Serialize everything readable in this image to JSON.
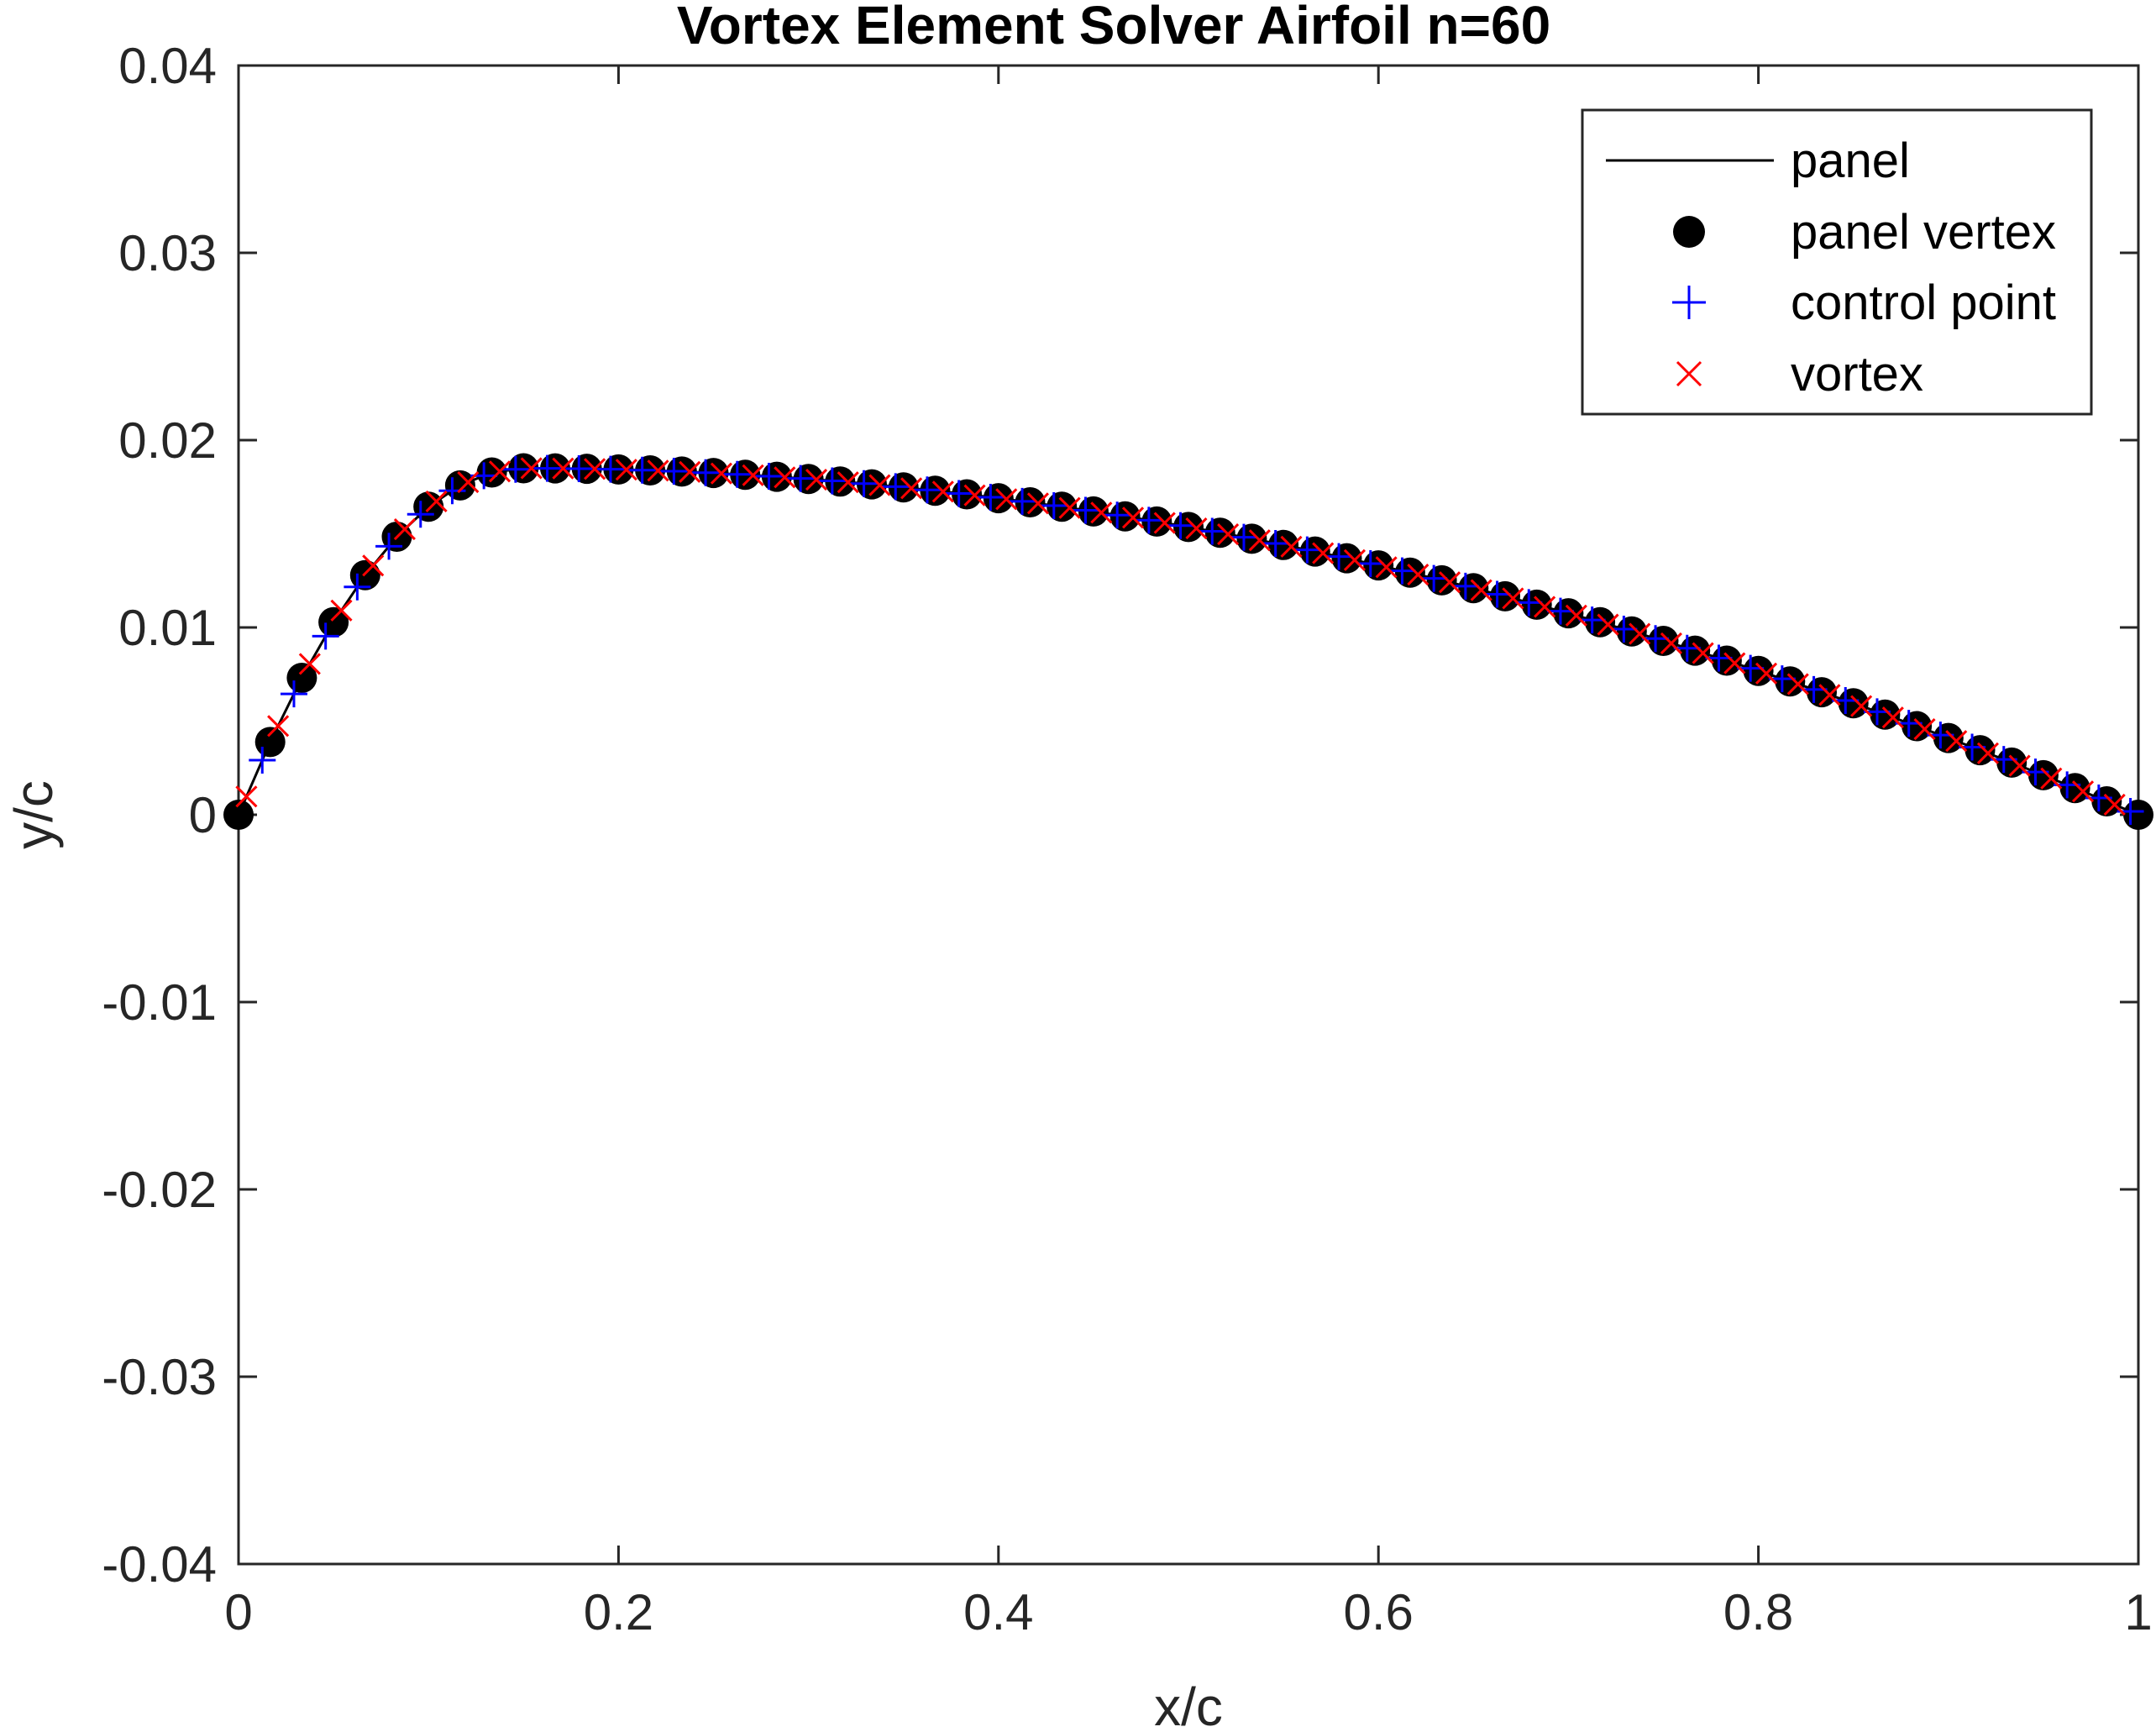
{
  "chart_data": {
    "type": "line",
    "title": "Vortex Element Solver Airfoil n=60",
    "xlabel": "x/c",
    "ylabel": "y/c",
    "xlim": [
      0,
      1
    ],
    "ylim": [
      -0.04,
      0.04
    ],
    "x_ticks": [
      "0",
      "0.2",
      "0.4",
      "0.6",
      "0.8",
      "1"
    ],
    "y_ticks": [
      "-0.04",
      "-0.03",
      "-0.02",
      "-0.01",
      "0",
      "0.01",
      "0.02",
      "0.03",
      "0.04"
    ],
    "grid": false,
    "legend_position": "top-right",
    "airfoil": {
      "max_camber": 0.0185,
      "max_camber_position": 0.15
    },
    "panel_count": 60,
    "colors": {
      "panel": "#000000",
      "panel_vertex": "#000000",
      "control_point": "#0000ff",
      "vortex": "#ff0000"
    },
    "series": [
      {
        "name": "panel",
        "style": "line"
      },
      {
        "name": "panel vertex",
        "style": "filled-circle"
      },
      {
        "name": "control point",
        "style": "plus"
      },
      {
        "name": "vortex",
        "style": "cross"
      }
    ]
  }
}
